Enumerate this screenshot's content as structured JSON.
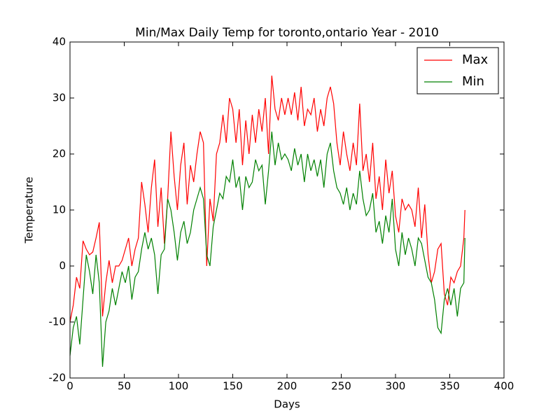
{
  "chart_data": {
    "type": "line",
    "title": "Min/Max Daily Temp for toronto,ontario Year - 2010",
    "x_label": "Days",
    "y_label": "Temperature",
    "xlim": [
      0,
      400
    ],
    "ylim": [
      -20,
      40
    ],
    "xticks": [
      0,
      50,
      100,
      150,
      200,
      250,
      300,
      350,
      400
    ],
    "yticks": [
      -20,
      -10,
      0,
      10,
      20,
      30,
      40
    ],
    "legend": "upper right",
    "x": [
      0,
      3,
      6,
      9,
      12,
      15,
      18,
      21,
      24,
      27,
      30,
      33,
      36,
      39,
      42,
      45,
      48,
      51,
      54,
      57,
      60,
      63,
      66,
      69,
      72,
      75,
      78,
      81,
      84,
      87,
      90,
      93,
      96,
      99,
      102,
      105,
      108,
      111,
      114,
      117,
      120,
      123,
      126,
      129,
      132,
      135,
      138,
      141,
      144,
      147,
      150,
      153,
      156,
      159,
      162,
      165,
      168,
      171,
      174,
      177,
      180,
      183,
      186,
      189,
      192,
      195,
      198,
      201,
      204,
      207,
      210,
      213,
      216,
      219,
      222,
      225,
      228,
      231,
      234,
      237,
      240,
      243,
      246,
      249,
      252,
      255,
      258,
      261,
      264,
      267,
      270,
      273,
      276,
      279,
      282,
      285,
      288,
      291,
      294,
      297,
      300,
      303,
      306,
      309,
      312,
      315,
      318,
      321,
      324,
      327,
      330,
      333,
      336,
      339,
      342,
      345,
      348,
      351,
      354,
      357,
      360,
      363,
      364
    ],
    "series": [
      {
        "name": "Max",
        "color": "#ff0000",
        "values": [
          -10,
          -7,
          -2,
          -4,
          4.5,
          3,
          2,
          2.5,
          5,
          7.8,
          -9,
          -3,
          1,
          -3,
          0,
          0,
          1,
          3,
          5,
          0,
          3,
          5,
          15,
          11,
          6,
          14,
          19,
          7,
          14,
          4,
          12,
          24,
          16,
          10,
          18,
          22,
          11,
          18,
          15,
          20,
          24,
          22,
          0,
          12,
          8,
          20,
          22,
          27,
          22,
          30,
          28,
          22,
          28,
          18,
          26,
          20,
          27,
          22,
          28,
          24,
          30,
          20,
          34,
          28,
          26,
          30,
          27,
          30,
          27,
          31,
          26,
          32,
          25,
          28,
          27,
          30,
          24,
          28,
          25,
          30,
          32,
          29,
          22,
          18,
          24,
          20,
          17,
          22,
          18,
          29,
          17,
          20,
          15,
          22,
          12,
          16,
          10,
          19,
          13,
          17,
          9,
          6,
          12,
          10,
          11,
          10,
          7,
          14,
          5,
          11,
          2,
          -3,
          -1,
          3,
          4,
          -5,
          -7,
          -2,
          -3,
          -1,
          0,
          5,
          10
        ]
      },
      {
        "name": "Min",
        "color": "#008000",
        "values": [
          -16,
          -11,
          -9,
          -14,
          -6,
          2,
          -1,
          -5,
          2,
          -3,
          -18,
          -10,
          -8,
          -4,
          -7,
          -4,
          -1,
          -3,
          0,
          -6,
          -2,
          -1,
          3,
          6,
          3,
          5,
          2,
          -5,
          2,
          3,
          12,
          10,
          6,
          1,
          6,
          8,
          4,
          6,
          10,
          12,
          14,
          12,
          2,
          0,
          7,
          10,
          13,
          12,
          16,
          15,
          19,
          14,
          16,
          10,
          16,
          14,
          15,
          19,
          17,
          18,
          11,
          17,
          24,
          18,
          22,
          19,
          20,
          19,
          17,
          21,
          18,
          20,
          15,
          20,
          17,
          19,
          16,
          19,
          14,
          20,
          22,
          17,
          14,
          13,
          11,
          14,
          10,
          13,
          11,
          17,
          12,
          9,
          10,
          13,
          6,
          8,
          4,
          9,
          6,
          12,
          3,
          0,
          6,
          2,
          5,
          3,
          0,
          5,
          4,
          1,
          -2,
          -3,
          -6,
          -11,
          -12,
          -6,
          -4,
          -7,
          -4,
          -9,
          -4,
          -3,
          5
        ]
      }
    ]
  }
}
